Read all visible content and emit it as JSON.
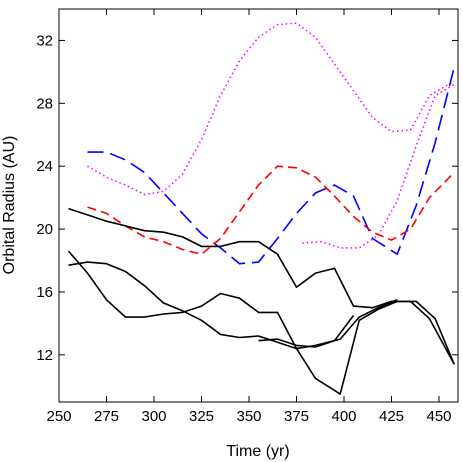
{
  "chart_data": {
    "type": "line",
    "title": "",
    "xlabel": "Time (yr)",
    "ylabel": "Orbital Radius (AU)",
    "xlim": [
      250,
      460
    ],
    "ylim": [
      9,
      34
    ],
    "xticks": [
      250,
      275,
      300,
      325,
      350,
      375,
      400,
      425,
      450
    ],
    "yticks": [
      12,
      16,
      20,
      24,
      28,
      32
    ],
    "grid": false,
    "legend": "none",
    "series": [
      {
        "color": "#ff00ff",
        "dash": "dotted",
        "x": [
          265,
          275,
          285,
          295,
          305,
          315,
          325,
          335,
          345,
          355,
          365,
          375,
          385,
          395,
          405,
          415,
          425,
          435,
          445,
          455,
          458
        ],
        "y": [
          24.0,
          23.3,
          22.8,
          22.2,
          22.4,
          23.5,
          25.7,
          28.5,
          30.7,
          32.2,
          33.0,
          33.1,
          32.2,
          30.5,
          28.8,
          27.1,
          26.2,
          26.3,
          28.5,
          29.2,
          29.4
        ]
      },
      {
        "color": "#ff00ff",
        "dash": "dotted",
        "x": [
          378,
          388,
          398,
          408,
          418,
          428,
          438,
          448,
          458
        ],
        "y": [
          19.1,
          19.2,
          18.8,
          18.8,
          19.6,
          21.8,
          25.3,
          28.5,
          29.2
        ]
      },
      {
        "color": "#0000ff",
        "dash": "long-dash",
        "x": [
          265,
          275,
          285,
          295,
          305,
          315,
          325,
          335,
          345,
          355,
          365,
          375,
          385,
          395,
          405,
          415,
          428,
          438,
          448,
          458
        ],
        "y": [
          24.9,
          24.9,
          24.4,
          23.6,
          22.3,
          21.0,
          19.7,
          18.8,
          17.8,
          17.9,
          19.4,
          21.0,
          22.3,
          22.8,
          22.1,
          19.4,
          18.4,
          21.5,
          25.5,
          30.3
        ]
      },
      {
        "color": "#ff0000",
        "dash": "dashed",
        "x": [
          265,
          275,
          285,
          295,
          305,
          315,
          325,
          335,
          345,
          355,
          365,
          375,
          385,
          395,
          405,
          415,
          425,
          435,
          445,
          458
        ],
        "y": [
          21.4,
          21.0,
          20.2,
          19.5,
          19.2,
          18.7,
          18.4,
          19.4,
          21.1,
          22.8,
          24.0,
          23.9,
          23.3,
          22.1,
          20.8,
          19.8,
          19.3,
          20.0,
          22.0,
          23.6
        ]
      },
      {
        "color": "#000000",
        "dash": "solid",
        "x": [
          255,
          265,
          275,
          285,
          295,
          305,
          315,
          325,
          335,
          345,
          355,
          365,
          375,
          385,
          395,
          405,
          415,
          425,
          435,
          445,
          458
        ],
        "y": [
          21.3,
          20.9,
          20.5,
          20.2,
          19.9,
          19.8,
          19.5,
          18.9,
          18.9,
          19.2,
          19.2,
          18.4,
          16.3,
          17.2,
          17.5,
          15.1,
          15.0,
          15.4,
          15.4,
          14.3,
          11.4
        ]
      },
      {
        "color": "#000000",
        "dash": "solid",
        "x": [
          255,
          265,
          275,
          285,
          295,
          305,
          315,
          325,
          335,
          345,
          355,
          365,
          375,
          385,
          398,
          408,
          418,
          428,
          438,
          448,
          458
        ],
        "y": [
          17.7,
          17.9,
          17.8,
          17.3,
          16.4,
          15.3,
          14.8,
          14.2,
          13.3,
          13.1,
          13.2,
          12.8,
          12.4,
          10.5,
          9.5,
          14.2,
          14.9,
          15.4,
          15.4,
          14.3,
          11.4
        ]
      },
      {
        "color": "#000000",
        "dash": "solid",
        "x": [
          255,
          265,
          275,
          285,
          295,
          305,
          315,
          325,
          335,
          345,
          355,
          365,
          375,
          385,
          398,
          408,
          418,
          428
        ],
        "y": [
          18.6,
          17.2,
          15.5,
          14.4,
          14.4,
          14.6,
          14.7,
          15.1,
          15.9,
          15.6,
          14.7,
          14.7,
          12.4,
          12.6,
          13.0,
          14.4,
          15.0,
          15.5
        ]
      },
      {
        "color": "#000000",
        "dash": "solid",
        "x": [
          355,
          365,
          375,
          385,
          395,
          405
        ],
        "y": [
          12.9,
          13.0,
          12.6,
          12.5,
          12.9,
          14.5
        ]
      }
    ]
  }
}
